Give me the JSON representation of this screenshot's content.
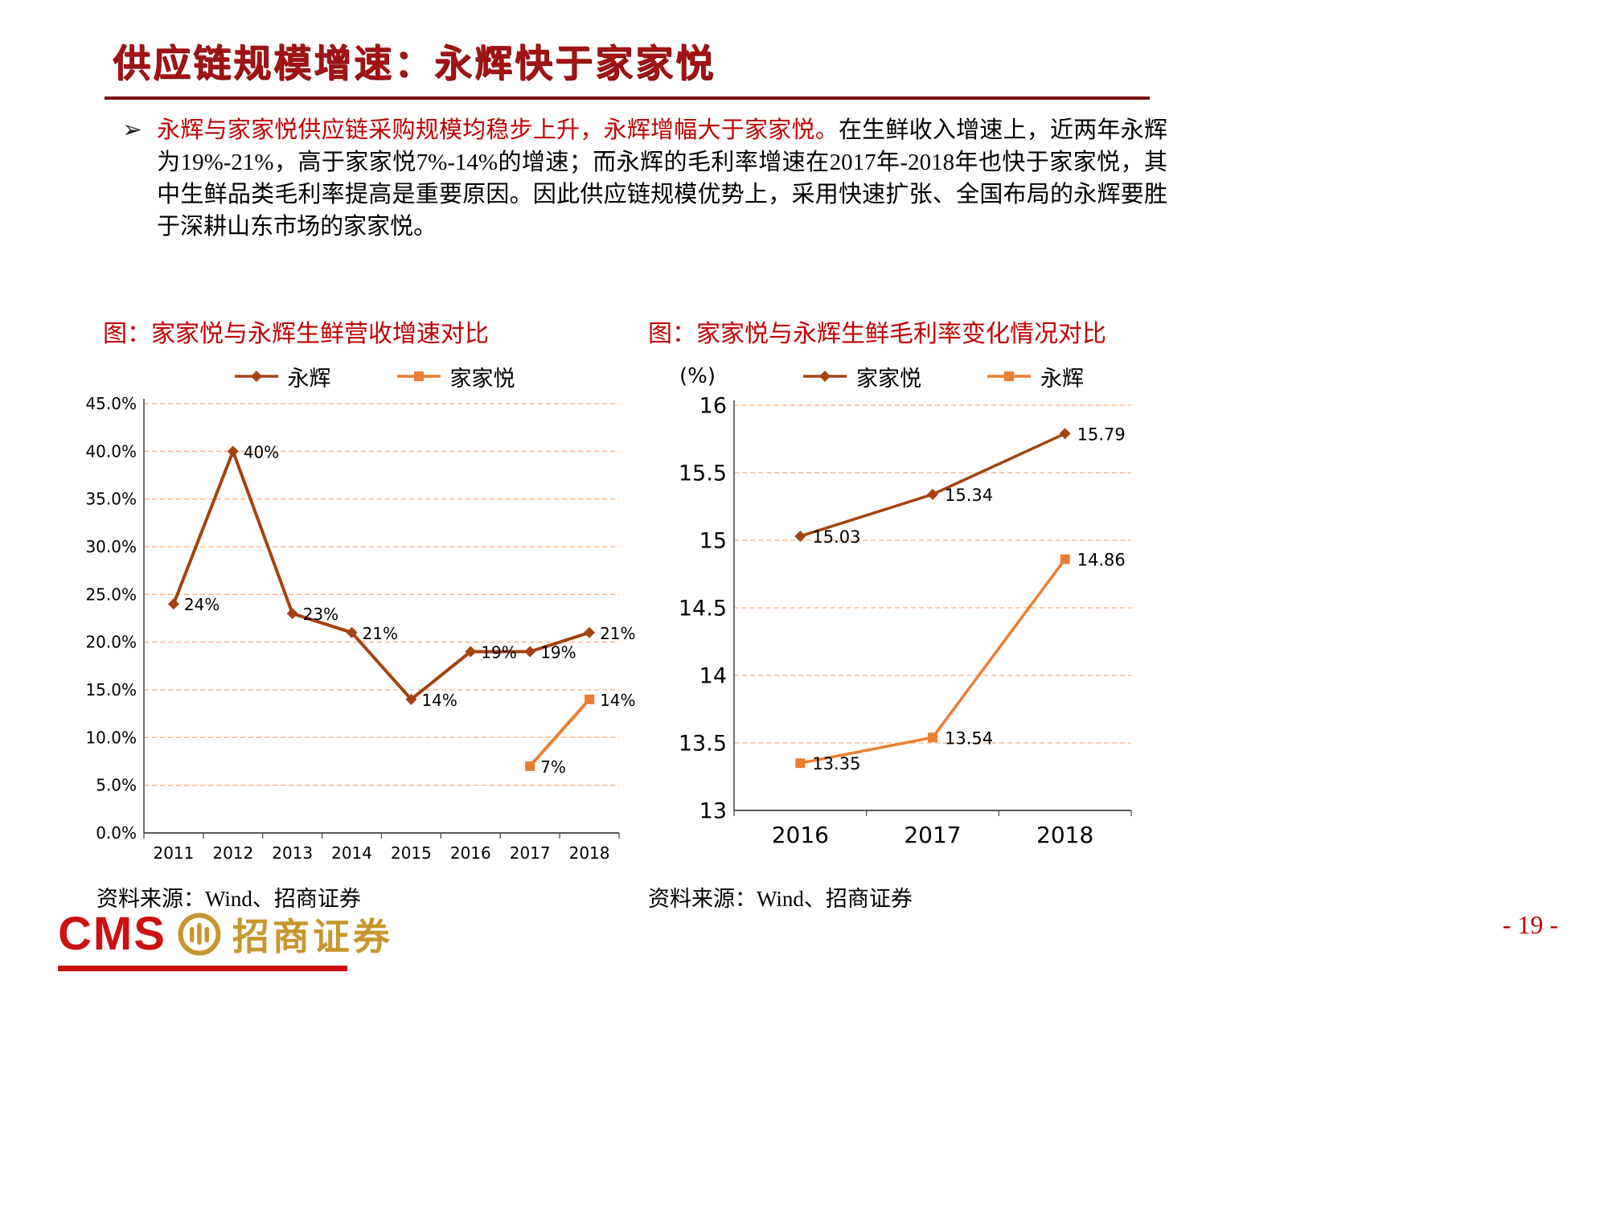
{
  "page": {
    "title": "供应链规模增速：永辉快于家家悦",
    "page_number": "- 19 -"
  },
  "bullet": {
    "marker": "➢",
    "red_text": "永辉与家家悦供应链采购规模均稳步上升，永辉增幅大于家家悦。",
    "black_text": "在生鲜收入增速上，近两年永辉为19%-21%，高于家家悦7%-14%的增速；而永辉的毛利率增速在2017年-2018年也快于家家悦，其中生鲜品类毛利率提高是重要原因。因此供应链规模优势上，采用快速扩张、全国布局的永辉要胜于深耕山东市场的家家悦。"
  },
  "logo": {
    "cms": "CMS",
    "name": "招商证券"
  },
  "colors": {
    "grid": "#F4B183",
    "dark_series": "#A3430E",
    "orange_series": "#ED7D31",
    "title_red": "#A21414",
    "accent_red": "#C00000",
    "axis": "#404040"
  },
  "chart_data": [
    {
      "type": "line",
      "title": "图：家家悦与永辉生鲜营收增速对比",
      "source": "资料来源：Wind、招商证券",
      "categories": [
        "2011",
        "2012",
        "2013",
        "2014",
        "2015",
        "2016",
        "2017",
        "2018"
      ],
      "series": [
        {
          "name": "永辉",
          "marker": "diamond",
          "color": "#A3430E",
          "values": [
            24,
            40,
            23,
            21,
            14,
            19,
            19,
            21
          ],
          "labels": [
            "24%",
            "40%",
            "23%",
            "21%",
            "14%",
            "19%",
            "19%",
            "21%"
          ]
        },
        {
          "name": "家家悦",
          "marker": "square",
          "color": "#ED7D31",
          "values": [
            null,
            null,
            null,
            null,
            null,
            null,
            7,
            14
          ],
          "labels": [
            null,
            null,
            null,
            null,
            null,
            null,
            "7%",
            "14%"
          ]
        }
      ],
      "ylim": [
        0,
        45
      ],
      "ytick_step": 5,
      "ytick_format": "percent1",
      "grid": "dashed",
      "legend_position": "top"
    },
    {
      "type": "line",
      "title": "图：家家悦与永辉生鲜毛利率变化情况对比",
      "source": "资料来源：Wind、招商证券",
      "ylabel": "(%)",
      "categories": [
        "2016",
        "2017",
        "2018"
      ],
      "series": [
        {
          "name": "家家悦",
          "marker": "diamond",
          "color": "#A3430E",
          "values": [
            15.03,
            15.34,
            15.79
          ],
          "labels": [
            "15.03",
            "15.34",
            "15.79"
          ]
        },
        {
          "name": "永辉",
          "marker": "square",
          "color": "#ED7D31",
          "values": [
            13.35,
            13.54,
            14.86
          ],
          "labels": [
            "13.35",
            "13.54",
            "14.86"
          ]
        }
      ],
      "ylim": [
        13,
        16
      ],
      "ytick_step": 0.5,
      "ytick_format": "plain",
      "grid": "dashed",
      "legend_position": "top"
    }
  ]
}
